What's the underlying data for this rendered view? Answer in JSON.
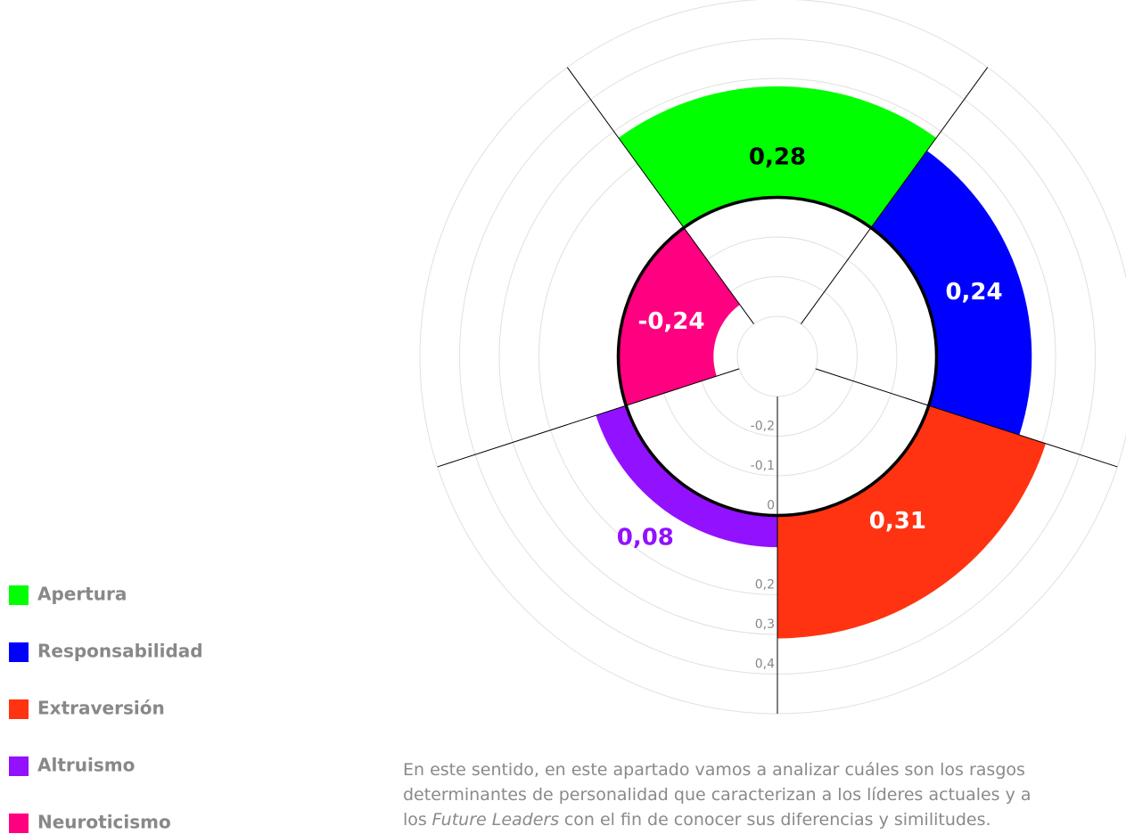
{
  "chart_data": {
    "type": "polar-bar",
    "categories": [
      "Apertura",
      "Responsabilidad",
      "Extraversión",
      "Altruismo",
      "Neuroticismo"
    ],
    "values": [
      0.28,
      0.24,
      0.31,
      0.08,
      -0.24
    ],
    "value_labels": [
      "0,28",
      "0,24",
      "0,31",
      "0,08",
      "-0,24"
    ],
    "colors": [
      "#00ff00",
      "#0000ff",
      "#ff3311",
      "#9211ff",
      "#ff0080"
    ],
    "ylim": [
      -0.3,
      0.5
    ],
    "yticks": [
      {
        "value": -0.2,
        "label": "-0,2"
      },
      {
        "value": -0.1,
        "label": "-0,1"
      },
      0,
      {
        "value": 0.2,
        "label": "0,2"
      },
      {
        "value": 0.3,
        "label": "0,3"
      },
      {
        "value": 0.4,
        "label": "0,4"
      }
    ],
    "grid": true
  },
  "paragraph": {
    "line1": "En este sentido, en este apartado vamos a analizar cuáles son los rasgos",
    "line2": "determinantes de personalidad que caracterizan a los líderes actuales y a",
    "line3_before": "los",
    "line3_italic": "Future Leaders",
    "line3_after": "con el fin de conocer sus diferencias y similitudes."
  }
}
